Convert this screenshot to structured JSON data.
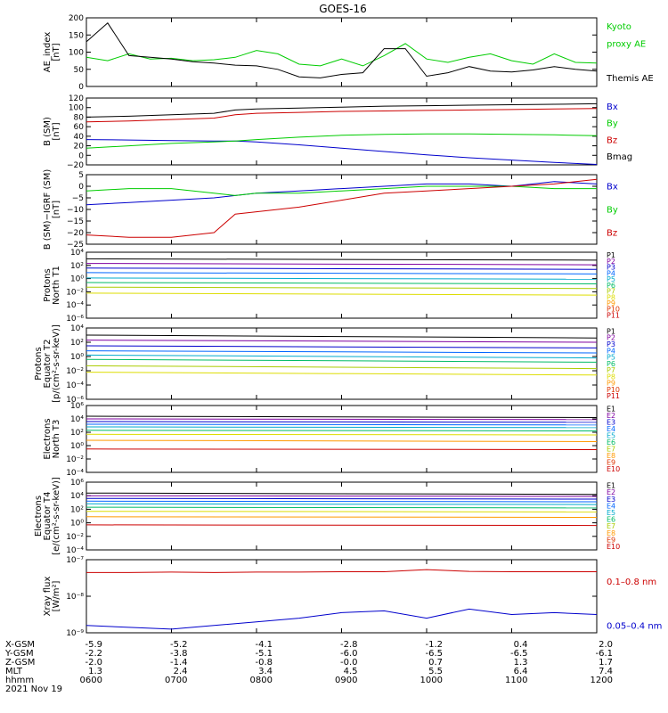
{
  "title": "GOES-16",
  "time_axis": {
    "rows": [
      {
        "label": "X-GSM",
        "values": [
          "-5.9",
          "-5.2",
          "-4.1",
          "-2.8",
          "-1.2",
          "0.4",
          "2.0"
        ]
      },
      {
        "label": "Y-GSM",
        "values": [
          "-2.2",
          "-3.8",
          "-5.1",
          "-6.0",
          "-6.5",
          "-6.5",
          "-6.1"
        ]
      },
      {
        "label": "Z-GSM",
        "values": [
          "-2.0",
          "-1.4",
          "-0.8",
          "-0.0",
          "0.7",
          "1.3",
          "1.7"
        ]
      },
      {
        "label": "MLT",
        "values": [
          "1.3",
          "2.4",
          "3.4",
          "4.5",
          "5.5",
          "6.4",
          "7.4"
        ]
      },
      {
        "label": "hhmm",
        "values": [
          "0600",
          "0700",
          "0800",
          "0900",
          "1000",
          "1100",
          "1200"
        ]
      }
    ],
    "date": "2021 Nov 19"
  },
  "chart_data": [
    {
      "type": "line",
      "ylabel": [
        "AE_index",
        "[nT]"
      ],
      "scale": "linear",
      "ylim": [
        0,
        200
      ],
      "ticks": [
        "0",
        "50",
        "100",
        "150",
        "200"
      ],
      "x": [
        "06:00",
        "06:15",
        "06:30",
        "06:45",
        "07:00",
        "07:15",
        "07:30",
        "07:45",
        "08:00",
        "08:15",
        "08:30",
        "08:45",
        "09:00",
        "09:15",
        "09:30",
        "09:45",
        "10:00",
        "10:15",
        "10:30",
        "10:45",
        "11:00",
        "11:15",
        "11:30",
        "11:45",
        "12:00"
      ],
      "series": [
        {
          "name": "Kyoto proxy AE",
          "color": "#00cc00",
          "values": [
            85,
            75,
            95,
            80,
            82,
            75,
            78,
            85,
            105,
            95,
            65,
            60,
            80,
            60,
            90,
            125,
            80,
            70,
            85,
            95,
            75,
            65,
            95,
            70,
            68
          ]
        },
        {
          "name": "Themis AE",
          "color": "#000000",
          "values": [
            130,
            185,
            90,
            85,
            80,
            72,
            68,
            62,
            60,
            50,
            28,
            25,
            35,
            40,
            110,
            110,
            30,
            40,
            58,
            45,
            42,
            48,
            58,
            50,
            45
          ]
        }
      ],
      "legend_lines": [
        [
          {
            "text": "Kyoto",
            "color": "#00cc00"
          }
        ],
        [
          {
            "text": "proxy AE",
            "color": "#00cc00"
          }
        ],
        [],
        [
          {
            "text": "Themis AE",
            "color": "#000000"
          }
        ]
      ]
    },
    {
      "type": "line",
      "ylabel": [
        "B (SM)",
        "[nT]"
      ],
      "scale": "linear",
      "ylim": [
        -20,
        120
      ],
      "ticks": [
        "−20",
        "0",
        "20",
        "40",
        "60",
        "80",
        "100",
        "120"
      ],
      "x": [
        "06:00",
        "06:30",
        "07:00",
        "07:30",
        "07:45",
        "08:00",
        "08:30",
        "09:00",
        "09:30",
        "10:00",
        "10:30",
        "11:00",
        "11:30",
        "12:00"
      ],
      "series": [
        {
          "name": "Bx",
          "color": "#0000cc",
          "values": [
            33,
            32,
            31,
            30,
            30,
            28,
            22,
            15,
            8,
            1,
            -5,
            -10,
            -15,
            -19
          ]
        },
        {
          "name": "By",
          "color": "#00cc00",
          "values": [
            15,
            20,
            25,
            28,
            30,
            33,
            38,
            42,
            44,
            45,
            45,
            44,
            43,
            41
          ]
        },
        {
          "name": "Bz",
          "color": "#cc0000",
          "values": [
            70,
            72,
            75,
            78,
            85,
            88,
            90,
            92,
            93,
            94,
            95,
            96,
            97,
            98
          ]
        },
        {
          "name": "Bmag",
          "color": "#000000",
          "values": [
            80,
            82,
            85,
            88,
            95,
            97,
            99,
            101,
            103,
            104,
            105,
            106,
            107,
            108
          ]
        }
      ],
      "legend_lines": [
        [
          {
            "text": "Bx",
            "color": "#0000cc"
          }
        ],
        [
          {
            "text": "By",
            "color": "#00cc00"
          }
        ],
        [
          {
            "text": "Bz",
            "color": "#cc0000"
          }
        ],
        [
          {
            "text": "Bmag",
            "color": "#000000"
          }
        ]
      ]
    },
    {
      "type": "line",
      "ylabel": [
        "B (SM)−IGRF (SM)",
        "[nT]"
      ],
      "scale": "linear",
      "ylim": [
        -25,
        5
      ],
      "ticks": [
        "−25",
        "−20",
        "−15",
        "−10",
        "−5",
        "0",
        "5"
      ],
      "x": [
        "06:00",
        "06:30",
        "07:00",
        "07:30",
        "07:45",
        "08:00",
        "08:30",
        "09:00",
        "09:30",
        "10:00",
        "10:30",
        "11:00",
        "11:30",
        "12:00"
      ],
      "series": [
        {
          "name": "Bx",
          "color": "#0000cc",
          "values": [
            -8,
            -7,
            -6,
            -5,
            -4,
            -3,
            -2,
            -1,
            0,
            1,
            1,
            0,
            2,
            1
          ]
        },
        {
          "name": "By",
          "color": "#00cc00",
          "values": [
            -2,
            -1,
            -1,
            -3,
            -4,
            -3,
            -3,
            -2,
            -1,
            0,
            0,
            0,
            -1,
            -1
          ]
        },
        {
          "name": "Bz",
          "color": "#cc0000",
          "values": [
            -21,
            -22,
            -22,
            -20,
            -12,
            -11,
            -9,
            -6,
            -3,
            -2,
            -1,
            0,
            1,
            3
          ]
        }
      ],
      "legend_lines": [
        [
          {
            "text": "Bx",
            "color": "#0000cc"
          }
        ],
        [
          {
            "text": "By",
            "color": "#00cc00"
          }
        ],
        [
          {
            "text": "Bz",
            "color": "#cc0000"
          }
        ]
      ]
    },
    {
      "type": "line",
      "ylabel": [
        "Protons",
        "North T1"
      ],
      "scale": "log",
      "ylim": [
        -6,
        4
      ],
      "ticks": [
        "10⁻⁶",
        "10⁻⁴",
        "10⁻²",
        "10⁰",
        "10²",
        "10⁴"
      ],
      "x": [
        "06:00",
        "12:00"
      ],
      "series": [
        {
          "name": "P1",
          "color": "#000000",
          "values": [
            3.0,
            2.8
          ]
        },
        {
          "name": "P2",
          "color": "#7f00a0",
          "values": [
            2.3,
            2.1
          ]
        },
        {
          "name": "P3",
          "color": "#0000cc",
          "values": [
            1.6,
            1.4
          ]
        },
        {
          "name": "P4",
          "color": "#0066ff",
          "values": [
            0.9,
            0.7
          ]
        },
        {
          "name": "P5",
          "color": "#00aacc",
          "values": [
            0.1,
            -0.1
          ]
        },
        {
          "name": "P6",
          "color": "#00bb66",
          "values": [
            -0.6,
            -0.8
          ]
        },
        {
          "name": "P7",
          "color": "#aacc00",
          "values": [
            -1.3,
            -1.5
          ]
        },
        {
          "name": "P8",
          "color": "#dddd00",
          "values": [
            -2.2,
            -2.5
          ]
        }
      ],
      "legend_lines": [
        [
          {
            "text": "P1",
            "color": "#000000"
          }
        ],
        [
          {
            "text": "P2",
            "color": "#7f00a0"
          }
        ],
        [
          {
            "text": "P3",
            "color": "#0000cc"
          }
        ],
        [
          {
            "text": "P4",
            "color": "#0066ff"
          }
        ],
        [
          {
            "text": "P5",
            "color": "#00aacc"
          }
        ],
        [
          {
            "text": "P6",
            "color": "#00bb66"
          }
        ],
        [
          {
            "text": "P7",
            "color": "#aacc00"
          }
        ],
        [
          {
            "text": "P8",
            "color": "#dddd00"
          }
        ],
        [
          {
            "text": "P9",
            "color": "#ff9900"
          }
        ],
        [
          {
            "text": "P10",
            "color": "#dd3300"
          }
        ],
        [
          {
            "text": "P11",
            "color": "#cc0000"
          }
        ]
      ]
    },
    {
      "type": "line",
      "ylabel": [
        "Protons",
        "Equator T2",
        "[p/(cm²-s-sr-keV)]"
      ],
      "scale": "log",
      "ylim": [
        -6,
        4
      ],
      "ticks": [
        "10⁻⁶",
        "10⁻⁴",
        "10⁻²",
        "10⁰",
        "10²",
        "10⁴"
      ],
      "x": [
        "06:00",
        "12:00"
      ],
      "series": [
        {
          "name": "P1",
          "color": "#000000",
          "values": [
            3.0,
            2.6
          ]
        },
        {
          "name": "P2",
          "color": "#7f00a0",
          "values": [
            2.3,
            2.0
          ]
        },
        {
          "name": "P3",
          "color": "#0000cc",
          "values": [
            1.5,
            1.2
          ]
        },
        {
          "name": "P4",
          "color": "#0066ff",
          "values": [
            0.8,
            0.5
          ]
        },
        {
          "name": "P5",
          "color": "#00aacc",
          "values": [
            0.2,
            -0.2
          ]
        },
        {
          "name": "P6",
          "color": "#00bb66",
          "values": [
            -0.4,
            -0.8
          ]
        },
        {
          "name": "P7",
          "color": "#aacc00",
          "values": [
            -1.3,
            -1.7
          ]
        },
        {
          "name": "P8",
          "color": "#dddd00",
          "values": [
            -2.2,
            -2.6
          ]
        }
      ],
      "legend_lines": [
        [
          {
            "text": "P1",
            "color": "#000000"
          }
        ],
        [
          {
            "text": "P2",
            "color": "#7f00a0"
          }
        ],
        [
          {
            "text": "P3",
            "color": "#0000cc"
          }
        ],
        [
          {
            "text": "P4",
            "color": "#0066ff"
          }
        ],
        [
          {
            "text": "P5",
            "color": "#00aacc"
          }
        ],
        [
          {
            "text": "P6",
            "color": "#00bb66"
          }
        ],
        [
          {
            "text": "P7",
            "color": "#aacc00"
          }
        ],
        [
          {
            "text": "P8",
            "color": "#dddd00"
          }
        ],
        [
          {
            "text": "P9",
            "color": "#ff9900"
          }
        ],
        [
          {
            "text": "P10",
            "color": "#dd3300"
          }
        ],
        [
          {
            "text": "P11",
            "color": "#cc0000"
          }
        ]
      ]
    },
    {
      "type": "line",
      "ylabel": [
        "Electrons",
        "North T3"
      ],
      "scale": "log",
      "ylim": [
        -4,
        6
      ],
      "ticks": [
        "10⁻⁴",
        "10⁻²",
        "10⁰",
        "10²",
        "10⁴",
        "10⁶"
      ],
      "x": [
        "06:00",
        "12:00"
      ],
      "series": [
        {
          "name": "E1",
          "color": "#000000",
          "values": [
            4.4,
            4.2
          ]
        },
        {
          "name": "E2",
          "color": "#7f00a0",
          "values": [
            4.0,
            3.9
          ]
        },
        {
          "name": "E3",
          "color": "#0000cc",
          "values": [
            3.6,
            3.5
          ]
        },
        {
          "name": "E4",
          "color": "#0066ff",
          "values": [
            3.2,
            3.1
          ]
        },
        {
          "name": "E5",
          "color": "#00aacc",
          "values": [
            2.8,
            2.7
          ]
        },
        {
          "name": "E6",
          "color": "#00bb66",
          "values": [
            2.3,
            2.2
          ]
        },
        {
          "name": "E7",
          "color": "#dddd00",
          "values": [
            1.7,
            1.6
          ]
        },
        {
          "name": "E8",
          "color": "#ff9900",
          "values": [
            0.8,
            0.6
          ]
        },
        {
          "name": "E9",
          "color": "#cc0000",
          "values": [
            -0.5,
            -0.6
          ]
        }
      ],
      "legend_lines": [
        [
          {
            "text": "E1",
            "color": "#000000"
          }
        ],
        [
          {
            "text": "E2",
            "color": "#7f00a0"
          }
        ],
        [
          {
            "text": "E3",
            "color": "#0000cc"
          }
        ],
        [
          {
            "text": "E4",
            "color": "#0066ff"
          }
        ],
        [
          {
            "text": "E5",
            "color": "#00aacc"
          }
        ],
        [
          {
            "text": "E6",
            "color": "#00bb66"
          }
        ],
        [
          {
            "text": "E7",
            "color": "#aacc00"
          }
        ],
        [
          {
            "text": "E8",
            "color": "#ff9900"
          }
        ],
        [
          {
            "text": "E9",
            "color": "#dd3300"
          }
        ],
        [
          {
            "text": "E10",
            "color": "#cc0000"
          }
        ]
      ]
    },
    {
      "type": "line",
      "ylabel": [
        "Electrons",
        "Equator T4",
        "[e/(cm²-s-sr-keV)]"
      ],
      "scale": "log",
      "ylim": [
        -4,
        6
      ],
      "ticks": [
        "10⁻⁴",
        "10⁻²",
        "10⁰",
        "10²",
        "10⁴",
        "10⁶"
      ],
      "x": [
        "06:00",
        "12:00"
      ],
      "series": [
        {
          "name": "E1",
          "color": "#000000",
          "values": [
            4.4,
            4.2
          ]
        },
        {
          "name": "E2",
          "color": "#7f00a0",
          "values": [
            4.0,
            3.9
          ]
        },
        {
          "name": "E3",
          "color": "#0000cc",
          "values": [
            3.6,
            3.5
          ]
        },
        {
          "name": "E4",
          "color": "#0066ff",
          "values": [
            3.2,
            3.1
          ]
        },
        {
          "name": "E5",
          "color": "#00aacc",
          "values": [
            2.8,
            2.7
          ]
        },
        {
          "name": "E6",
          "color": "#00bb66",
          "values": [
            2.3,
            2.2
          ]
        },
        {
          "name": "E7",
          "color": "#dddd00",
          "values": [
            1.7,
            1.6
          ]
        },
        {
          "name": "E8",
          "color": "#ff9900",
          "values": [
            0.9,
            0.8
          ]
        },
        {
          "name": "E9",
          "color": "#cc0000",
          "values": [
            -0.3,
            -0.4
          ]
        }
      ],
      "legend_lines": [
        [
          {
            "text": "E1",
            "color": "#000000"
          }
        ],
        [
          {
            "text": "E2",
            "color": "#7f00a0"
          }
        ],
        [
          {
            "text": "E3",
            "color": "#0000cc"
          }
        ],
        [
          {
            "text": "E4",
            "color": "#0066ff"
          }
        ],
        [
          {
            "text": "E5",
            "color": "#00aacc"
          }
        ],
        [
          {
            "text": "E6",
            "color": "#00bb66"
          }
        ],
        [
          {
            "text": "E7",
            "color": "#aacc00"
          }
        ],
        [
          {
            "text": "E8",
            "color": "#ff9900"
          }
        ],
        [
          {
            "text": "E9",
            "color": "#dd3300"
          }
        ],
        [
          {
            "text": "E10",
            "color": "#cc0000"
          }
        ]
      ]
    },
    {
      "type": "line",
      "ylabel": [
        "Xray flux",
        "[W/m²]"
      ],
      "scale": "log",
      "ylim": [
        -9,
        -7
      ],
      "ticks": [
        "10⁻⁹",
        "10⁻⁸",
        "10⁻⁷"
      ],
      "x": [
        "06:00",
        "06:30",
        "07:00",
        "07:30",
        "08:00",
        "08:30",
        "09:00",
        "09:30",
        "10:00",
        "10:30",
        "11:00",
        "11:30",
        "12:00"
      ],
      "series": [
        {
          "name": "0.1–0.8 nm",
          "color": "#cc0000",
          "values": [
            -7.35,
            -7.35,
            -7.34,
            -7.35,
            -7.34,
            -7.34,
            -7.33,
            -7.33,
            -7.27,
            -7.32,
            -7.33,
            -7.33,
            -7.33
          ]
        },
        {
          "name": "0.05–0.4 nm",
          "color": "#0000cc",
          "values": [
            -8.8,
            -8.85,
            -8.9,
            -8.8,
            -8.7,
            -8.6,
            -8.45,
            -8.4,
            -8.6,
            -8.35,
            -8.5,
            -8.45,
            -8.5
          ]
        }
      ],
      "legend_lines": [
        [],
        [
          {
            "text": "0.1–0.8 nm",
            "color": "#cc0000"
          }
        ],
        [],
        [],
        [
          {
            "text": "0.05–0.4 nm",
            "color": "#0000cc"
          }
        ]
      ]
    }
  ]
}
